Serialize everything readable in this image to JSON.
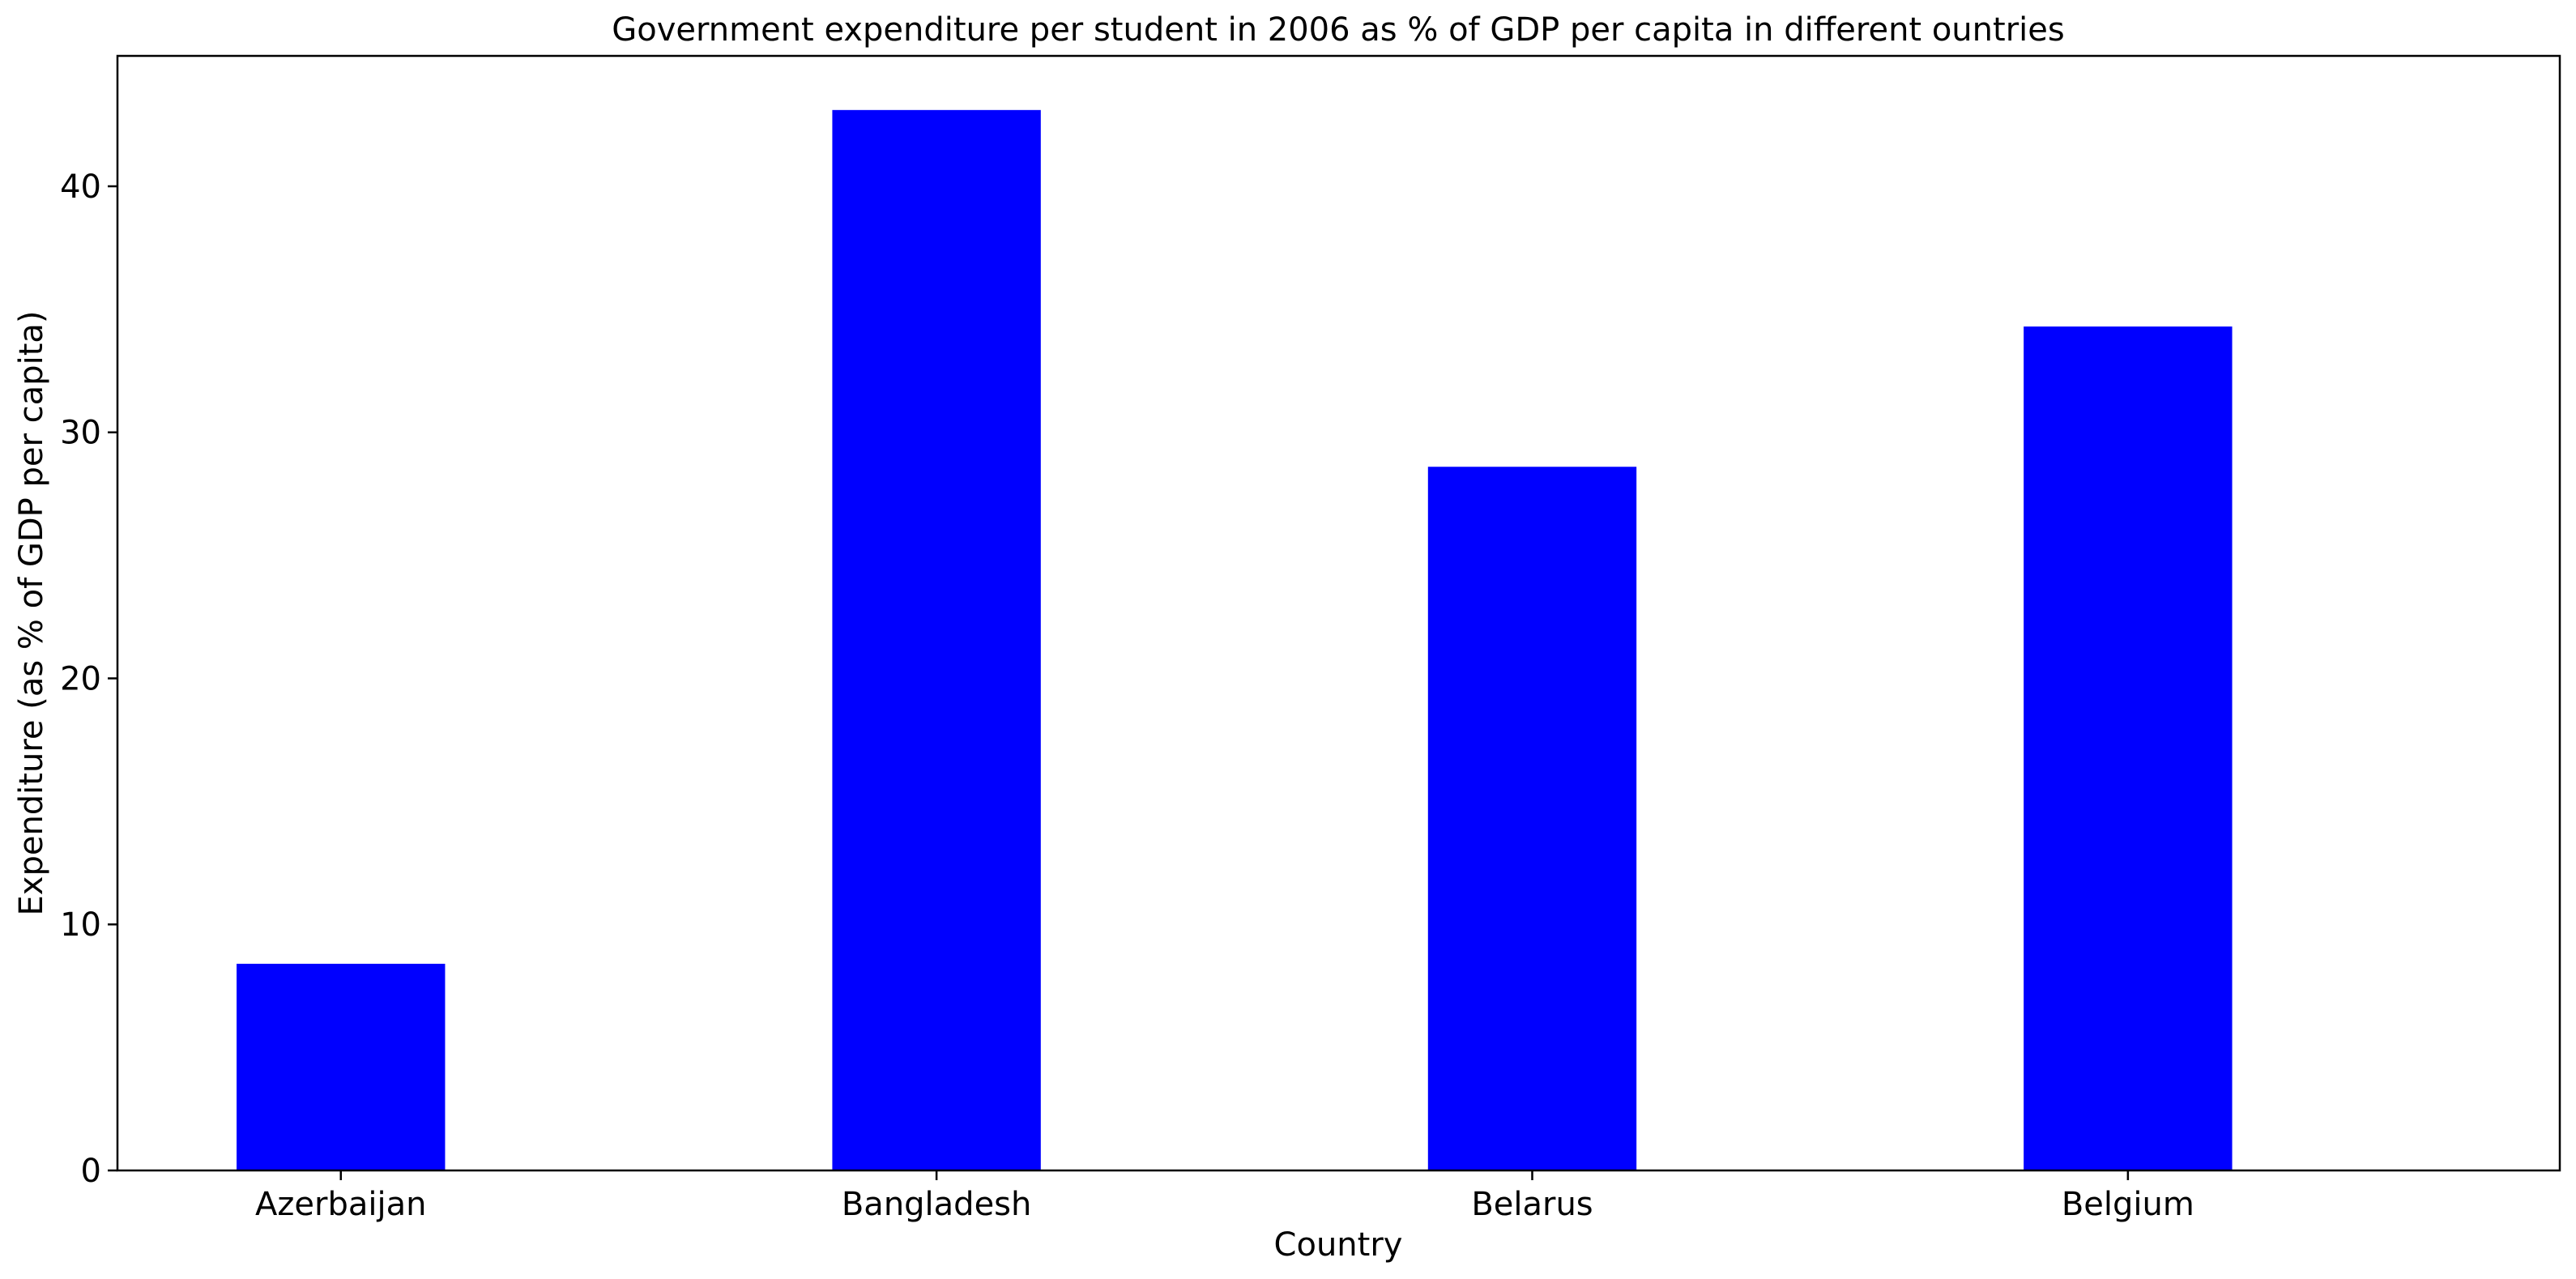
{
  "chart_data": {
    "type": "bar",
    "title": "Government expenditure per student in 2006 as % of GDP per capita in different ountries",
    "xlabel": "Country",
    "ylabel": "Expenditure (as % of GDP per capita)",
    "categories": [
      "Azerbaijan",
      "Bangladesh",
      "Belarus",
      "Belgium"
    ],
    "values": [
      8.4,
      43.1,
      28.6,
      34.3
    ],
    "ylim": [
      0,
      45.3
    ],
    "yticks": [
      0,
      10,
      20,
      30,
      40
    ],
    "grid": false,
    "legend": "none",
    "bar_color": "#0000ff"
  }
}
